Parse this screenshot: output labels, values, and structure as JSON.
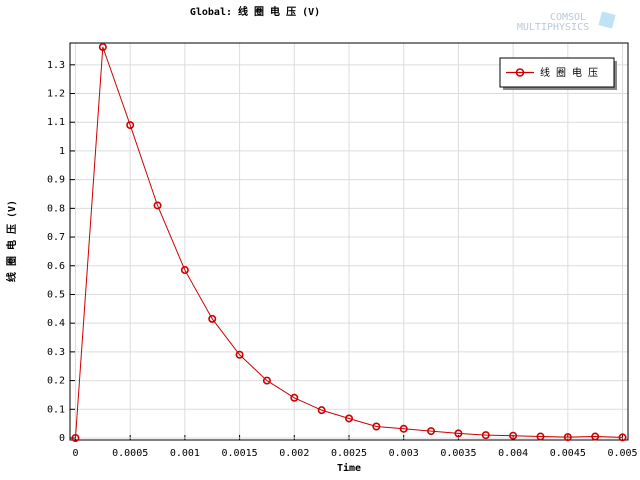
{
  "chart_data": {
    "type": "line",
    "title": "Global: 线 圈 电 压 (V)",
    "xlabel": "Time",
    "ylabel": "线 圈 电 压 (V)",
    "logo": [
      "COMSOL",
      "MULTIPHYSICS"
    ],
    "x": [
      0,
      0.00025,
      0.0005,
      0.00075,
      0.001,
      0.00125,
      0.0015,
      0.00175,
      0.002,
      0.00225,
      0.0025,
      0.00275,
      0.003,
      0.00325,
      0.0035,
      0.00375,
      0.004,
      0.00425,
      0.0045,
      0.00475,
      0.005
    ],
    "series": [
      {
        "name": "线 圈 电 压",
        "color": "#cc0000",
        "values": [
          0,
          1.362,
          1.09,
          0.81,
          0.585,
          0.415,
          0.29,
          0.2,
          0.14,
          0.097,
          0.068,
          0.04,
          0.032,
          0.024,
          0.016,
          0.01,
          0.008,
          0.005,
          0.003,
          0.005,
          0.002
        ]
      }
    ],
    "xlim": [
      -5e-05,
      0.00505
    ],
    "ylim": [
      -0.007,
      1.376
    ],
    "xticks": [
      0,
      0.0005,
      0.001,
      0.0015,
      0.002,
      0.0025,
      0.003,
      0.0035,
      0.004,
      0.0045,
      0.005
    ],
    "yticks": [
      0,
      0.1,
      0.2,
      0.3,
      0.4,
      0.5,
      0.6,
      0.7,
      0.8,
      0.9,
      1,
      1.1,
      1.2,
      1.3
    ],
    "grid": true,
    "legend": "top-right"
  }
}
